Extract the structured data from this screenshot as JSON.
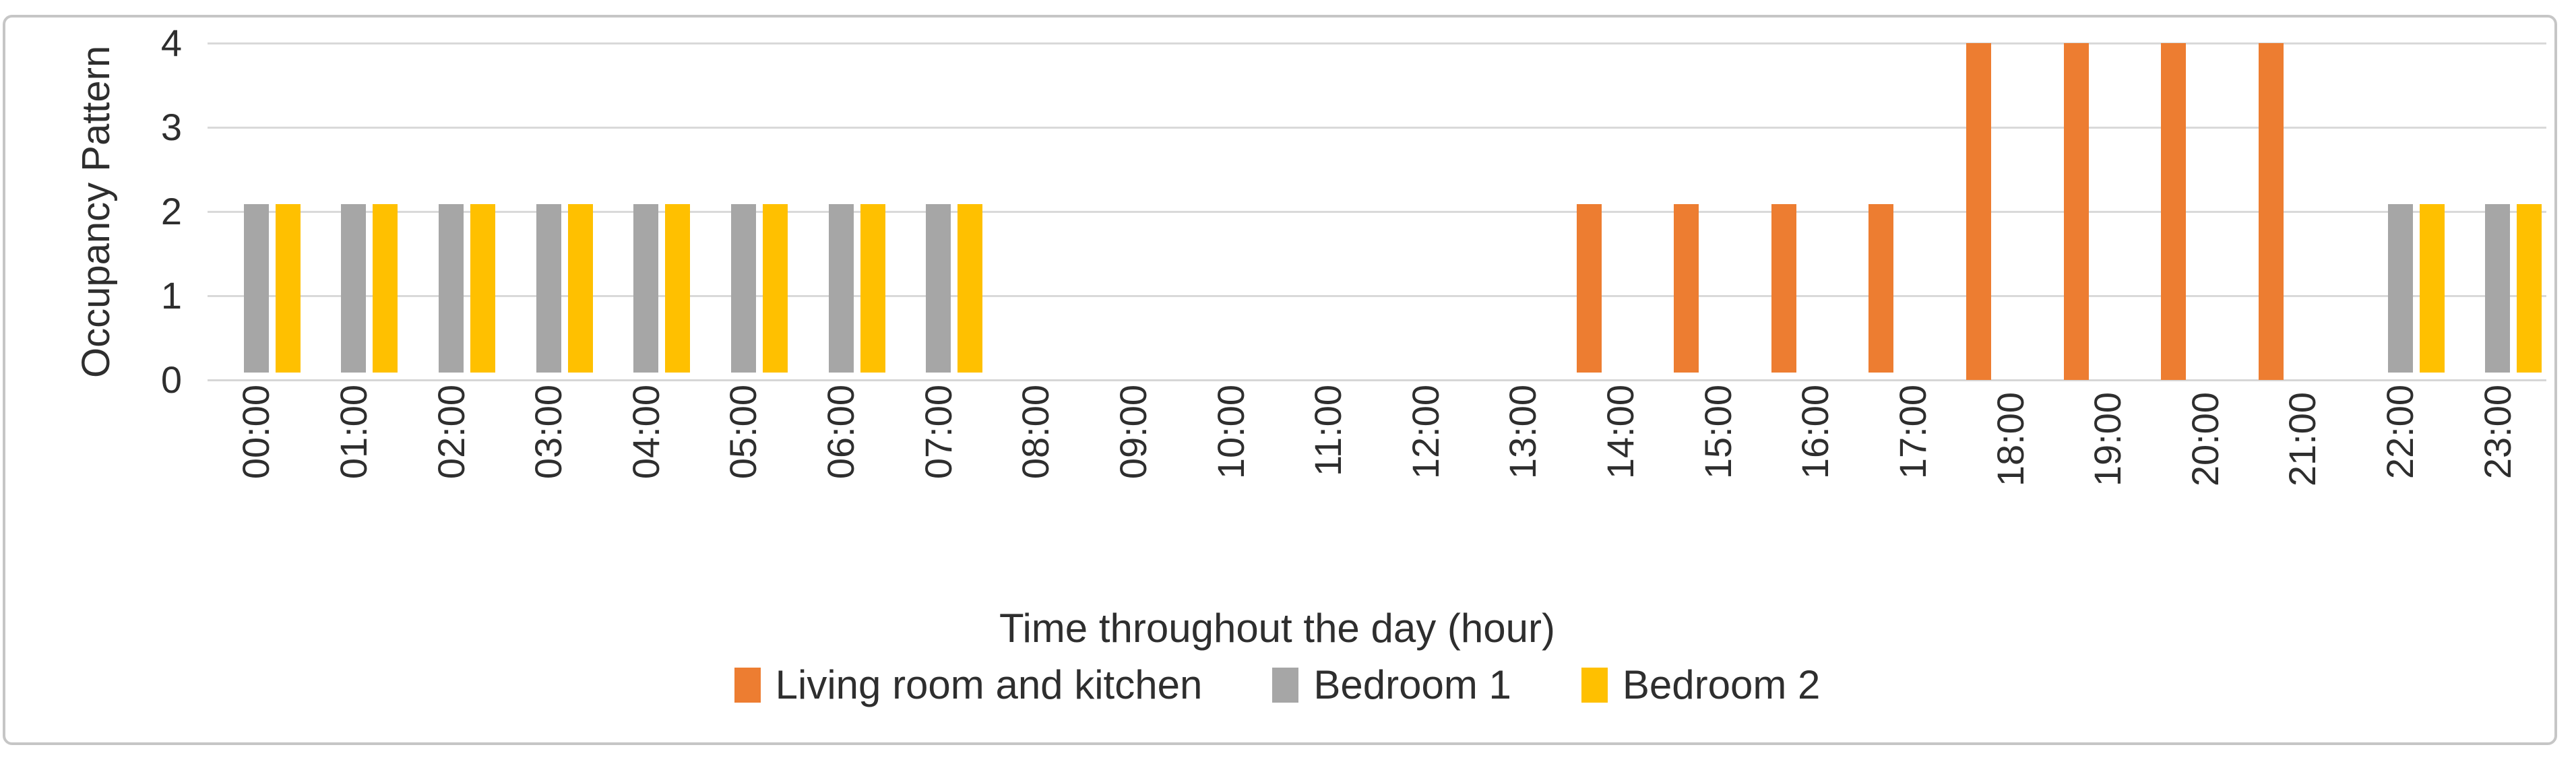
{
  "figure": {
    "background_color": "#ffffff",
    "border_color": "#c6c6c6",
    "gridline_color": "#d9d9d9",
    "text_color": "#2e2e2e"
  },
  "chart_data": {
    "type": "bar",
    "title": "",
    "xlabel": "Time throughout the day (hour)",
    "ylabel": "Occupancy Pattern",
    "categories": [
      "00:00",
      "01:00",
      "02:00",
      "03:00",
      "04:00",
      "05:00",
      "06:00",
      "07:00",
      "08:00",
      "09:00",
      "10:00",
      "11:00",
      "12:00",
      "13:00",
      "14:00",
      "15:00",
      "16:00",
      "17:00",
      "18:00",
      "19:00",
      "20:00",
      "21:00",
      "22:00",
      "23:00"
    ],
    "series": [
      {
        "name": "Living room and kitchen",
        "color": "#ED7D31",
        "values": [
          0,
          0,
          0,
          0,
          0,
          0,
          0,
          0,
          0,
          0,
          0,
          0,
          0,
          0,
          2,
          2,
          2,
          2,
          4,
          4,
          4,
          4,
          0,
          0
        ]
      },
      {
        "name": "Bedroom 1",
        "color": "#A6A6A6",
        "values": [
          2,
          2,
          2,
          2,
          2,
          2,
          2,
          2,
          0,
          0,
          0,
          0,
          0,
          0,
          0,
          0,
          0,
          0,
          0,
          0,
          0,
          0,
          2,
          2
        ]
      },
      {
        "name": "Bedroom 2",
        "color": "#FFC000",
        "values": [
          2,
          2,
          2,
          2,
          2,
          2,
          2,
          2,
          0,
          0,
          0,
          0,
          0,
          0,
          0,
          0,
          0,
          0,
          0,
          0,
          0,
          0,
          2,
          2
        ]
      }
    ],
    "ylim": [
      0,
      4
    ],
    "yticks": [
      0,
      1,
      2,
      3,
      4
    ],
    "grid": true,
    "legend_position": "bottom"
  }
}
